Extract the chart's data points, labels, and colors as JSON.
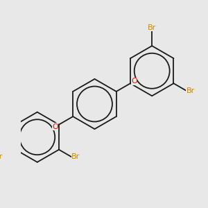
{
  "background_color": "#e8e8e8",
  "bond_color": "#1a1a1a",
  "oxygen_color": "#dd1100",
  "bromine_color": "#cc8800",
  "bond_lw": 1.3,
  "figsize": [
    3.0,
    3.0
  ],
  "dpi": 100,
  "xlim": [
    -2.5,
    3.5
  ],
  "ylim": [
    -3.5,
    3.5
  ]
}
